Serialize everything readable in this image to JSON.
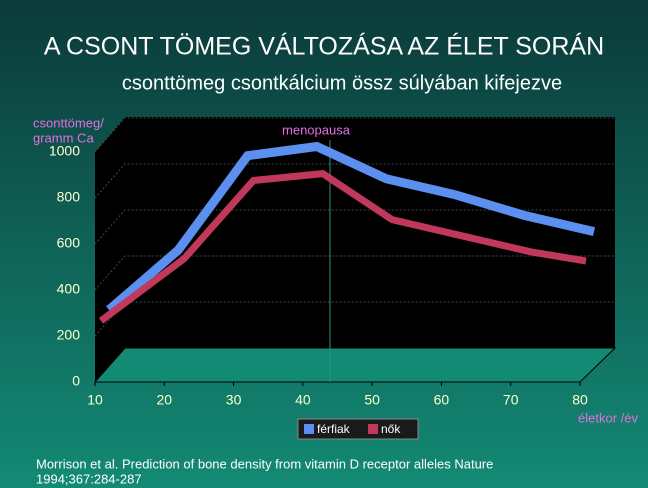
{
  "chart_data": {
    "type": "line",
    "title": "A CSONT TÖMEG VÁLTOZÁSA AZ ÉLET SORÁN",
    "subtitle": "csonttömeg csontkálcium össz súlyában kifejezve",
    "y_label": [
      "csonttömeg/",
      "gramm  Ca"
    ],
    "x_label": "életkor /év",
    "annotation": "menopausa",
    "source": [
      "Morrison et al. Prediction of bone density from vitamin D receptor alleles Nature",
      "1994;367:284-287"
    ],
    "xlim": [
      10,
      80
    ],
    "xticks": [
      10,
      20,
      30,
      40,
      50,
      60,
      70,
      80
    ],
    "ylim": [
      0,
      1000
    ],
    "yticks": [
      0,
      200,
      400,
      600,
      800,
      1000
    ],
    "grid": true,
    "series": [
      {
        "name": "férfiak",
        "color": "#5b8ff0",
        "x": [
          10,
          20,
          30,
          40,
          50,
          60,
          70,
          80
        ],
        "values": [
          240,
          500,
          910,
          950,
          810,
          740,
          650,
          580
        ]
      },
      {
        "name": "nők",
        "color": "#c0395a",
        "x": [
          10,
          22,
          32,
          42,
          52,
          62,
          72,
          80
        ],
        "values": [
          240,
          510,
          850,
          880,
          680,
          610,
          540,
          500
        ]
      }
    ]
  }
}
